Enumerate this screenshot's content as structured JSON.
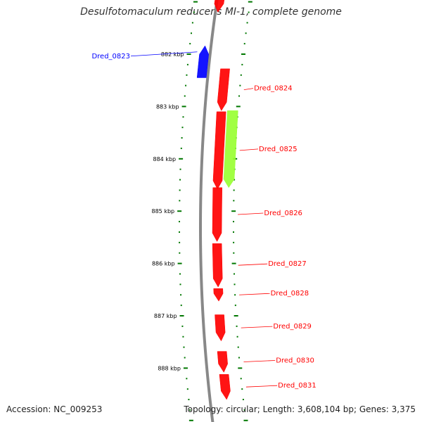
{
  "title": "Desulfotomaculum reducens MI-1, complete genome",
  "accession": "Accession: NC_009253",
  "summary": "Topology: circular; Length: 3,608,104 bp; Genes: 3,375",
  "colors": {
    "forward_cds": "#ff0000",
    "reverse_cds": "#0000ff",
    "other_feature": "#99ff33",
    "backbone": "#888888",
    "tick_marks": "#007700"
  },
  "ruler": {
    "unit": "kbp",
    "major_ticks": [
      {
        "kbp": 882,
        "label": "882 kbp"
      },
      {
        "kbp": 883,
        "label": "883 kbp"
      },
      {
        "kbp": 884,
        "label": "884 kbp"
      },
      {
        "kbp": 885,
        "label": "885 kbp"
      },
      {
        "kbp": 886,
        "label": "886 kbp"
      },
      {
        "kbp": 887,
        "label": "887 kbp"
      },
      {
        "kbp": 888,
        "label": "888 kbp"
      }
    ]
  },
  "genes": [
    {
      "locus": "Dred_0823",
      "strand": "reverse",
      "start_kbp": 881.84,
      "end_kbp": 882.45,
      "label": "Dred_0823"
    },
    {
      "locus": "Dred_0824",
      "strand": "forward",
      "start_kbp": 882.28,
      "end_kbp": 883.08,
      "label": "Dred_0824"
    },
    {
      "locus": "Dred_0825",
      "strand": "forward",
      "start_kbp": 883.1,
      "end_kbp": 884.58,
      "label": "Dred_0825"
    },
    {
      "locus": "Dred_0825_feature",
      "strand": "forward",
      "start_kbp": 883.08,
      "end_kbp": 884.55,
      "label": ""
    },
    {
      "locus": "Dred_0826",
      "strand": "forward",
      "start_kbp": 884.55,
      "end_kbp": 885.58,
      "label": "Dred_0826"
    },
    {
      "locus": "Dred_0827",
      "strand": "forward",
      "start_kbp": 885.62,
      "end_kbp": 886.45,
      "label": "Dred_0827"
    },
    {
      "locus": "Dred_0828",
      "strand": "forward",
      "start_kbp": 886.48,
      "end_kbp": 886.72,
      "label": "Dred_0828"
    },
    {
      "locus": "Dred_0829",
      "strand": "forward",
      "start_kbp": 886.98,
      "end_kbp": 887.48,
      "label": "Dred_0829"
    },
    {
      "locus": "Dred_0830",
      "strand": "forward",
      "start_kbp": 887.68,
      "end_kbp": 888.08,
      "label": "Dred_0830"
    },
    {
      "locus": "Dred_0831",
      "strand": "forward",
      "start_kbp": 888.12,
      "end_kbp": 888.6,
      "label": "Dred_0831"
    }
  ]
}
